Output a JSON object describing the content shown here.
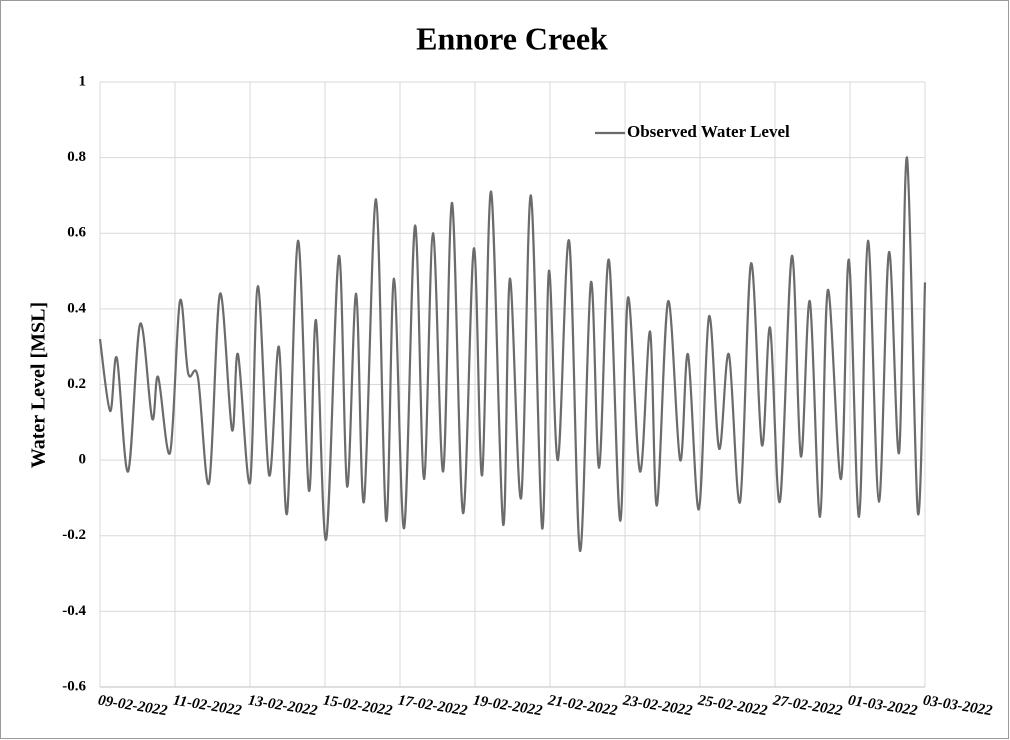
{
  "chart_data": {
    "type": "line",
    "title": "Ennore Creek",
    "y_label": "Water Level [MSL]",
    "legend_position": "top-right",
    "grid": true,
    "xlim": [
      0,
      22
    ],
    "xticks": [
      {
        "value": 0,
        "label": "09-02-2022"
      },
      {
        "value": 2,
        "label": "11-02-2022"
      },
      {
        "value": 4,
        "label": "13-02-2022"
      },
      {
        "value": 6,
        "label": "15-02-2022"
      },
      {
        "value": 8,
        "label": "17-02-2022"
      },
      {
        "value": 10,
        "label": "19-02-2022"
      },
      {
        "value": 12,
        "label": "21-02-2022"
      },
      {
        "value": 14,
        "label": "23-02-2022"
      },
      {
        "value": 16,
        "label": "25-02-2022"
      },
      {
        "value": 18,
        "label": "27-02-2022"
      },
      {
        "value": 20,
        "label": "01-03-2022"
      },
      {
        "value": 22,
        "label": "03-03-2022"
      }
    ],
    "ylim": [
      -0.6,
      1
    ],
    "yticks": [
      1,
      0.8,
      0.6,
      0.4,
      0.2,
      0,
      -0.2,
      -0.4,
      -0.6
    ],
    "x": [
      0,
      0.27,
      0.45,
      0.75,
      1.07,
      1.39,
      1.55,
      1.87,
      2.13,
      2.35,
      2.61,
      2.91,
      3.2,
      3.52,
      3.68,
      4,
      4.21,
      4.51,
      4.77,
      4.99,
      5.28,
      5.57,
      5.76,
      6.03,
      6.37,
      6.59,
      6.83,
      7.04,
      7.36,
      7.63,
      7.84,
      8.11,
      8.4,
      8.64,
      8.88,
      9.15,
      9.39,
      9.68,
      9.97,
      10.19,
      10.43,
      10.75,
      10.93,
      11.23,
      11.49,
      11.79,
      11.97,
      12.21,
      12.51,
      12.8,
      13.09,
      13.31,
      13.57,
      13.87,
      14.08,
      14.4,
      14.67,
      14.85,
      15.15,
      15.47,
      15.68,
      15.97,
      16.24,
      16.51,
      16.77,
      17.07,
      17.36,
      17.65,
      17.87,
      18.13,
      18.45,
      18.69,
      18.93,
      19.2,
      19.41,
      19.76,
      19.97,
      20.24,
      20.48,
      20.77,
      21.04,
      21.31,
      21.52,
      21.81,
      22
    ],
    "series": [
      {
        "name": "Observed Water Level",
        "color": "#6b6b6b",
        "values": [
          0.32,
          0.13,
          0.27,
          -0.03,
          0.36,
          0.11,
          0.22,
          0.02,
          0.42,
          0.23,
          0.22,
          -0.06,
          0.44,
          0.08,
          0.28,
          -0.06,
          0.46,
          -0.04,
          0.3,
          -0.14,
          0.58,
          -0.08,
          0.37,
          -0.21,
          0.54,
          -0.07,
          0.44,
          -0.11,
          0.69,
          -0.16,
          0.48,
          -0.18,
          0.62,
          -0.05,
          0.6,
          -0.03,
          0.68,
          -0.14,
          0.56,
          -0.04,
          0.71,
          -0.17,
          0.48,
          -0.1,
          0.7,
          -0.18,
          0.5,
          0.0,
          0.58,
          -0.24,
          0.47,
          -0.02,
          0.53,
          -0.16,
          0.43,
          -0.03,
          0.34,
          -0.12,
          0.42,
          0.0,
          0.28,
          -0.13,
          0.38,
          0.03,
          0.28,
          -0.11,
          0.52,
          0.04,
          0.35,
          -0.11,
          0.54,
          0.01,
          0.42,
          -0.15,
          0.45,
          -0.05,
          0.53,
          -0.15,
          0.58,
          -0.11,
          0.55,
          0.02,
          0.8,
          -0.14,
          0.47
        ]
      }
    ]
  }
}
